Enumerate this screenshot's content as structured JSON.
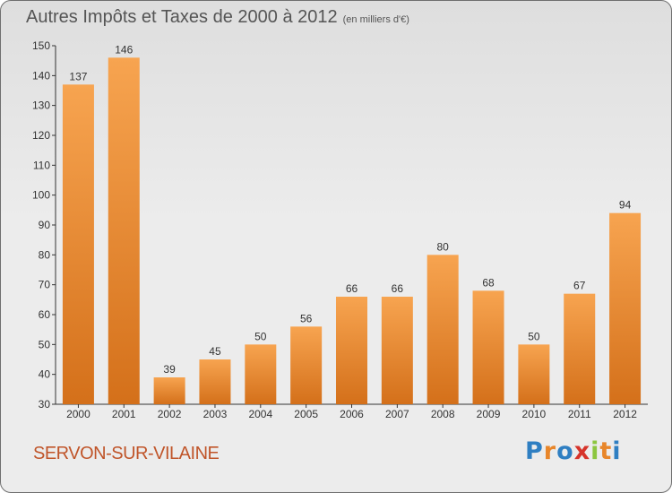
{
  "title": "Autres Impôts et Taxes de 2000 à 2012",
  "subtitle": "(en milliers d'€)",
  "location": "SERVON-SUR-VILAINE",
  "logo": {
    "letters": [
      "P",
      "r",
      "o",
      "x",
      "i",
      "t",
      "i"
    ],
    "colors": [
      "#2f7fc2",
      "#e8862a",
      "#2f7fc2",
      "#d6342b",
      "#8cc63f",
      "#e8862a",
      "#2f7fc2"
    ]
  },
  "colors": {
    "bar_light": "#f7a450",
    "bar_dark": "#d4701a",
    "text": "#555555",
    "location": "#c0552a"
  },
  "chart_data": {
    "type": "bar",
    "title": "Autres Impôts et Taxes de 2000 à 2012",
    "subtitle": "(en milliers d'€)",
    "categories": [
      "2000",
      "2001",
      "2002",
      "2003",
      "2004",
      "2005",
      "2006",
      "2007",
      "2008",
      "2009",
      "2010",
      "2011",
      "2012"
    ],
    "values": [
      137,
      146,
      39,
      45,
      50,
      56,
      66,
      66,
      80,
      68,
      50,
      67,
      94
    ],
    "ylim": [
      30,
      150
    ],
    "yticks": [
      30,
      40,
      50,
      60,
      70,
      80,
      90,
      100,
      110,
      120,
      130,
      140,
      150
    ],
    "grid": false,
    "xlabel": "",
    "ylabel": ""
  }
}
